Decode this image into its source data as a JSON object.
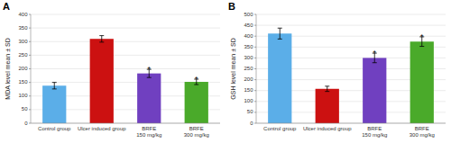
{
  "chart_data": [
    {
      "type": "bar",
      "title": "A",
      "categories": [
        "Control group",
        "Ulcer induced group",
        "BRFE\n150 mg/kg",
        "BRFE\n300 mg/kg"
      ],
      "values": [
        138,
        310,
        183,
        152
      ],
      "errors": [
        12,
        12,
        15,
        10
      ],
      "colors": [
        "#5baee8",
        "#cc1111",
        "#7040c0",
        "#4aaa2a"
      ],
      "annotations": [
        null,
        null,
        "*",
        "*"
      ],
      "ylabel": "MDA level mean ± SD",
      "ylim": [
        0,
        400
      ],
      "yticks": [
        0,
        50,
        100,
        150,
        200,
        250,
        300,
        350,
        400
      ],
      "grid": true
    },
    {
      "type": "bar",
      "title": "B",
      "categories": [
        "Control group",
        "Ulcer induced group",
        "BRFE\n150 mg/kg",
        "BRFE\n300 mg/kg"
      ],
      "values": [
        412,
        158,
        300,
        375
      ],
      "errors": [
        25,
        12,
        22,
        22
      ],
      "colors": [
        "#5baee8",
        "#cc1111",
        "#7040c0",
        "#4aaa2a"
      ],
      "annotations": [
        null,
        null,
        "*",
        "*"
      ],
      "ylabel": "GSH level mean ± SD",
      "ylim": [
        0,
        500
      ],
      "yticks": [
        0,
        50,
        100,
        150,
        200,
        250,
        300,
        350,
        400,
        450,
        500
      ],
      "grid": true
    }
  ]
}
